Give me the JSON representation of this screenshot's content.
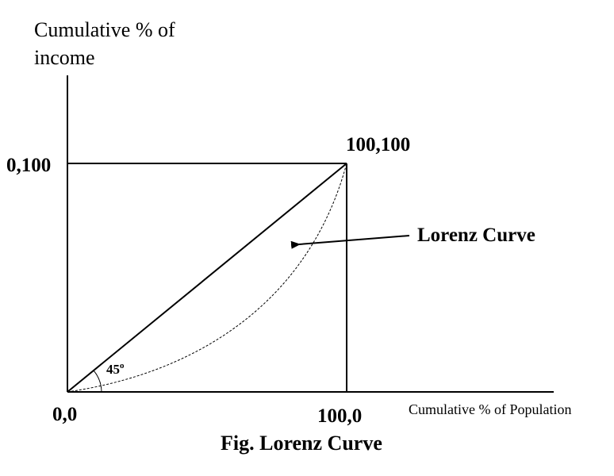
{
  "diagram": {
    "y_axis_label_line1": "Cumulative % of",
    "y_axis_label_line2": "income",
    "x_axis_label": "Cumulative % of Population",
    "origin_label": "0,0",
    "y_corner_label": "0,100",
    "x_corner_label": "100,0",
    "top_right_label": "100,100",
    "curve_label": "Lorenz Curve",
    "angle_label": "45",
    "angle_label_suffix": "o",
    "caption": "Fig. Lorenz Curve",
    "line_color": "#000000",
    "background_color": "#ffffff"
  }
}
